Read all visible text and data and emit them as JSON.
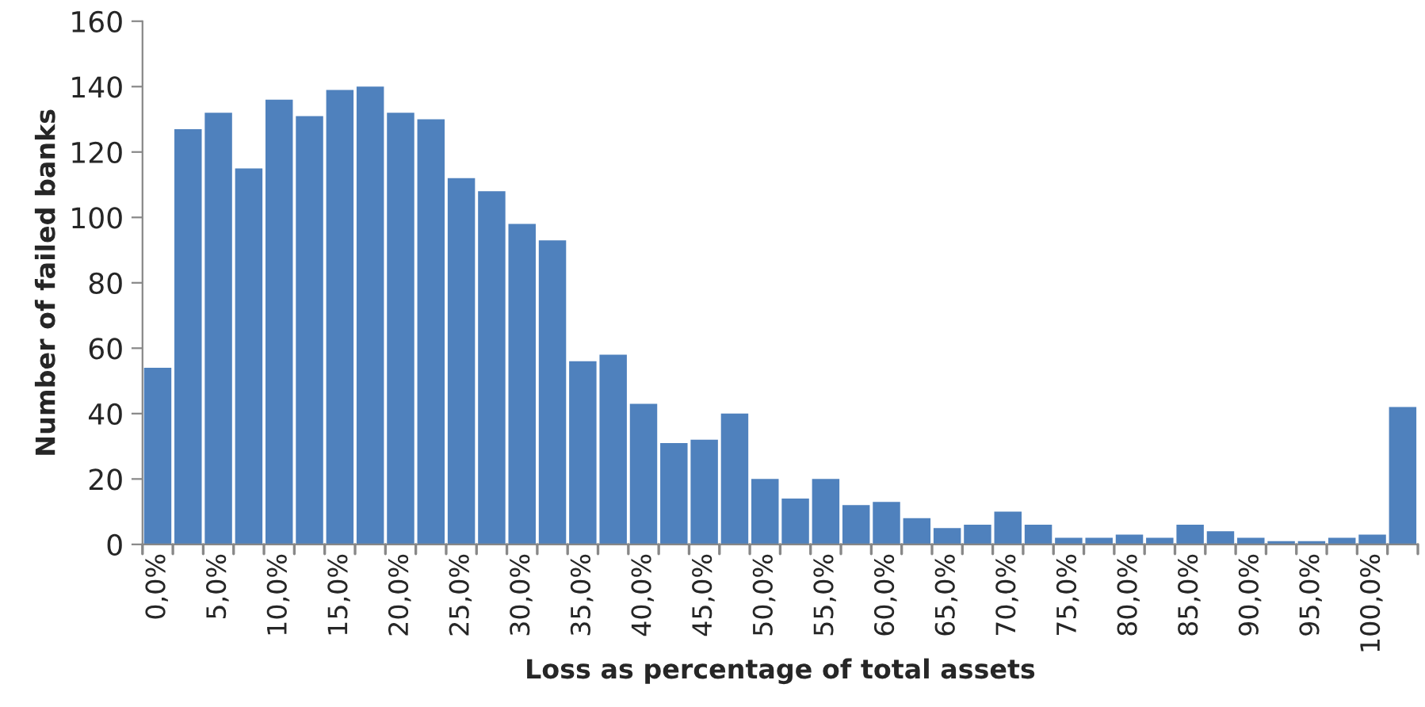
{
  "chart_data": {
    "type": "bar",
    "xlabel": "Loss as percentage of total assets",
    "ylabel": "Number of failed banks",
    "categories": [
      "0,0%",
      null,
      "5,0%",
      null,
      "10,0%",
      null,
      "15,0%",
      null,
      "20,0%",
      null,
      "25,0%",
      null,
      "30,0%",
      null,
      "35,0%",
      null,
      "40,0%",
      null,
      "45,0%",
      null,
      "50,0%",
      null,
      "55,0%",
      null,
      "60,0%",
      null,
      "65,0%",
      null,
      "70,0%",
      null,
      "75,0%",
      null,
      "80,0%",
      null,
      "85,0%",
      null,
      "90,0%",
      null,
      "95,0%",
      null,
      "100,0%",
      null
    ],
    "values": [
      54,
      127,
      132,
      115,
      136,
      131,
      139,
      140,
      132,
      130,
      112,
      108,
      98,
      93,
      56,
      58,
      43,
      31,
      32,
      40,
      20,
      14,
      20,
      12,
      13,
      8,
      5,
      6,
      10,
      6,
      2,
      2,
      3,
      2,
      6,
      4,
      2,
      1,
      1,
      2,
      3,
      42
    ],
    "color": "#4f81bd",
    "ylim": [
      0,
      160
    ],
    "yticks": [
      0,
      20,
      40,
      60,
      80,
      100,
      120,
      140,
      160
    ],
    "grid": false
  }
}
